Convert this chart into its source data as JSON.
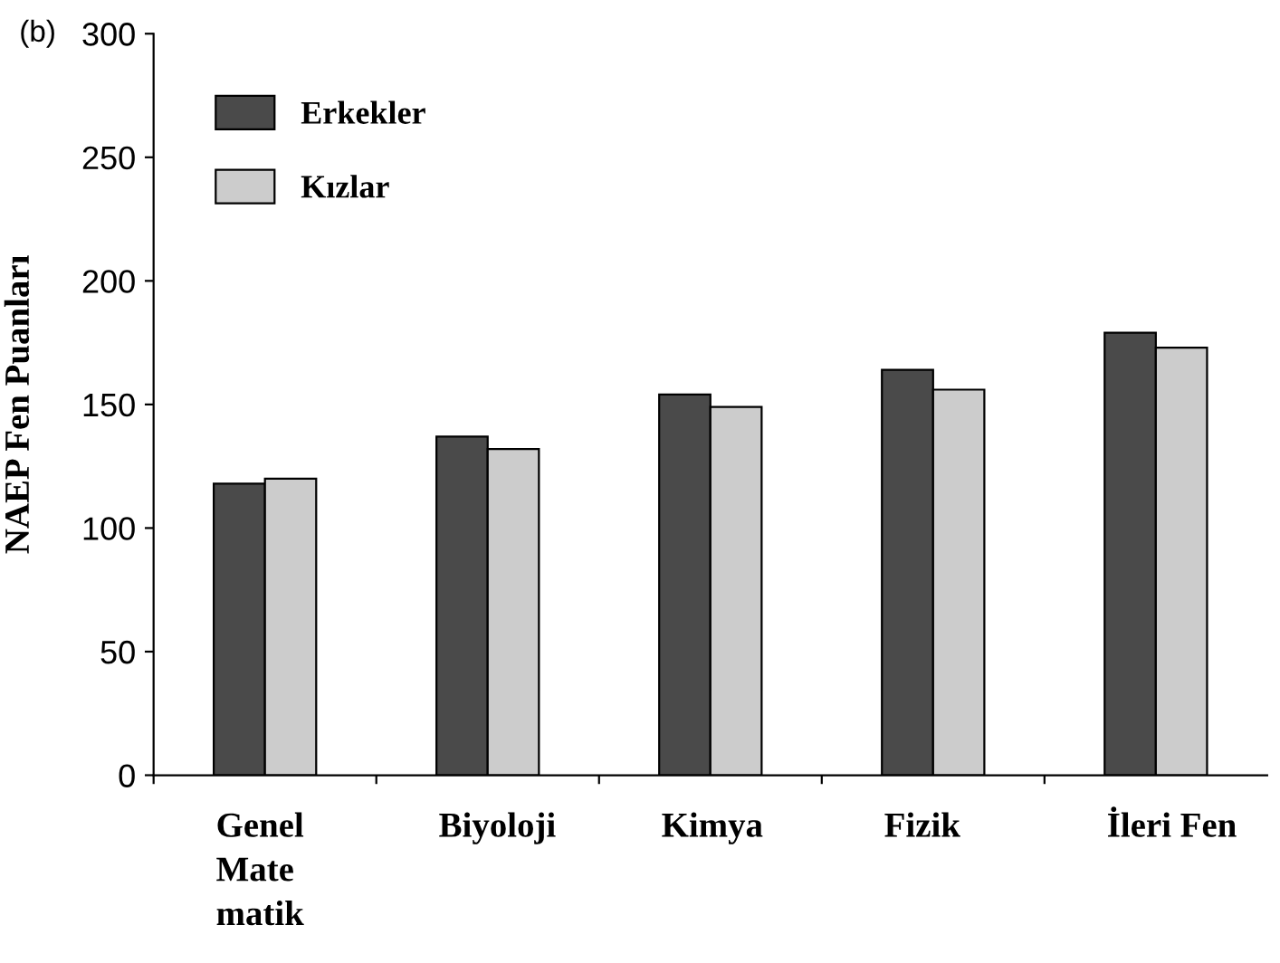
{
  "chart_data": {
    "type": "bar",
    "title": "(b)",
    "ylabel": "NAEP Fen Puanları",
    "categories": [
      "Genel\nMate\nmatik",
      "Biyoloji",
      "Kimya",
      "Fizik",
      "İleri Fen"
    ],
    "series": [
      {
        "name": "Erkekler",
        "color": "#4a4a4a",
        "values": [
          118,
          137,
          154,
          164,
          179
        ]
      },
      {
        "name": "Kızlar",
        "color": "#cccccc",
        "values": [
          120,
          132,
          149,
          156,
          173
        ]
      }
    ],
    "ylim": [
      0,
      300
    ],
    "yticks": [
      0,
      50,
      100,
      150,
      200,
      250,
      300
    ],
    "grid": false,
    "legend": "top left"
  }
}
